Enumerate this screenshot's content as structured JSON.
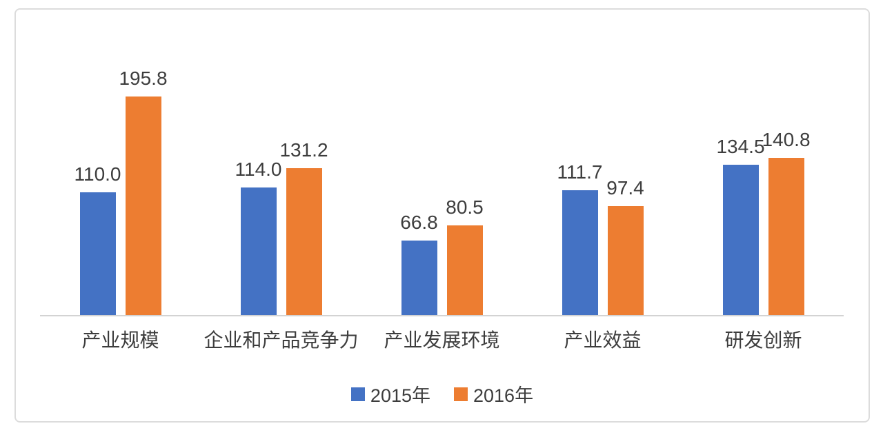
{
  "chart_data": {
    "type": "bar",
    "title": "",
    "categories": [
      "产业规模",
      "企业和产品竞争力",
      "产业发展环境",
      "产业效益",
      "研发创新"
    ],
    "series": [
      {
        "name": "2015年",
        "color": "#4472C4",
        "values": [
          110.0,
          114.0,
          66.8,
          111.7,
          134.5
        ]
      },
      {
        "name": "2016年",
        "color": "#ED7D31",
        "values": [
          195.8,
          131.2,
          80.5,
          97.4,
          140.8
        ]
      }
    ],
    "data_labels": {
      "visible": true,
      "format": "one_decimal",
      "labels_2015": [
        "110.0",
        "114.0",
        "66.8",
        "111.7",
        "134.5"
      ],
      "labels_2016": [
        "195.8",
        "131.2",
        "80.5",
        "97.4",
        "140.8"
      ]
    },
    "xlabel": "",
    "ylabel": "",
    "ylim": [
      0,
      250
    ],
    "value_axis_visible": false,
    "grid": false,
    "legend_position": "bottom"
  },
  "colors": {
    "series_2015": "#4472C4",
    "series_2016": "#ED7D31",
    "axis_line": "#d3d3d3",
    "frame_border": "#dcdcdc",
    "label_text": "#3d3d3d",
    "background": "#ffffff"
  }
}
